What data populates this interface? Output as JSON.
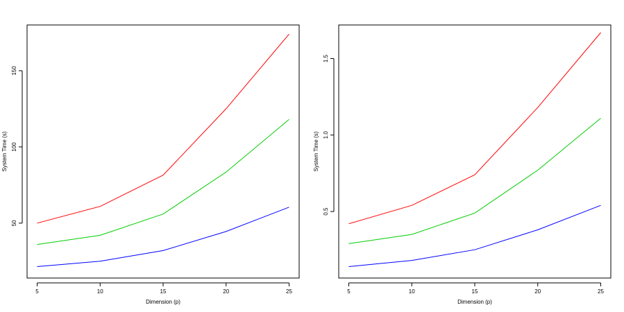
{
  "chart_data": [
    {
      "type": "line",
      "xlabel": "Dimension (p)",
      "ylabel": "System Time (s)",
      "x": [
        5,
        10,
        15,
        20,
        25
      ],
      "xlim": [
        4.2,
        25.8
      ],
      "ylim": [
        14,
        180
      ],
      "xticks": [
        5,
        10,
        15,
        20,
        25
      ],
      "yticks": [
        50,
        100,
        150
      ],
      "grid": false,
      "series": [
        {
          "color": "#ff0000",
          "values": [
            50,
            61,
            81.5,
            125,
            174
          ]
        },
        {
          "color": "#00cc00",
          "values": [
            36,
            42,
            56,
            83.5,
            118
          ]
        },
        {
          "color": "#0000ff",
          "values": [
            21.5,
            25,
            32,
            44.5,
            60.5
          ]
        }
      ]
    },
    {
      "type": "line",
      "xlabel": "Dimension (p)",
      "ylabel": "System Time (s)",
      "x": [
        5,
        10,
        15,
        20,
        25
      ],
      "xlim": [
        4.2,
        25.8
      ],
      "ylim": [
        0.065,
        1.72
      ],
      "xticks": [
        5,
        10,
        15,
        20,
        25
      ],
      "yticks": [
        0.5,
        1.0,
        1.5
      ],
      "yticklabels": [
        "0.5",
        "1.0",
        "1.5"
      ],
      "grid": false,
      "series": [
        {
          "color": "#ff0000",
          "values": [
            0.42,
            0.54,
            0.74,
            1.18,
            1.67
          ]
        },
        {
          "color": "#00cc00",
          "values": [
            0.29,
            0.35,
            0.49,
            0.77,
            1.11
          ]
        },
        {
          "color": "#0000ff",
          "values": [
            0.14,
            0.18,
            0.25,
            0.38,
            0.54
          ]
        }
      ]
    }
  ]
}
